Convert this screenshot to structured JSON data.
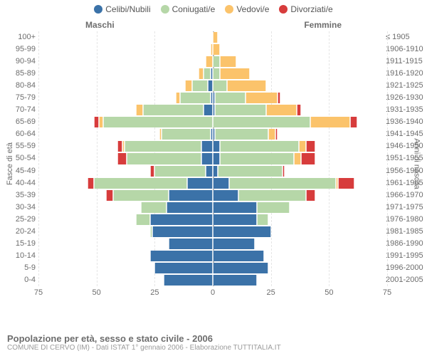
{
  "legend": [
    {
      "label": "Celibi/Nubili",
      "color": "#3b72a8"
    },
    {
      "label": "Coniugati/e",
      "color": "#b6d7a8"
    },
    {
      "label": "Vedovi/e",
      "color": "#fbc36b"
    },
    {
      "label": "Divorziati/e",
      "color": "#d73c3c"
    }
  ],
  "gender_labels": {
    "m": "Maschi",
    "f": "Femmine"
  },
  "axis_titles": {
    "left": "Fasce di età",
    "right": "Anni di nascita"
  },
  "footer": {
    "title": "Popolazione per età, sesso e stato civile - 2006",
    "subtitle": "COMUNE DI CERVO (IM) - Dati ISTAT 1° gennaio 2006 - Elaborazione TUTTITALIA.IT"
  },
  "chart": {
    "background_color": "#ffffff",
    "grid_color": "#e5e5e5",
    "centerline_color": "#bcbcbc",
    "text_color": "#6d6d6d",
    "xmax": 75,
    "xticks": [
      75,
      50,
      25,
      0,
      25,
      50,
      75
    ],
    "age_labels": [
      "100+",
      "95-99",
      "90-94",
      "85-89",
      "80-84",
      "75-79",
      "70-74",
      "65-69",
      "60-64",
      "55-59",
      "50-54",
      "45-49",
      "40-44",
      "35-39",
      "30-34",
      "25-29",
      "20-24",
      "15-19",
      "10-14",
      "5-9",
      "0-4"
    ],
    "birth_labels": [
      "≤ 1905",
      "1906-1910",
      "1911-1915",
      "1916-1920",
      "1921-1925",
      "1926-1930",
      "1931-1935",
      "1936-1940",
      "1941-1945",
      "1946-1950",
      "1951-1955",
      "1956-1960",
      "1961-1965",
      "1966-1970",
      "1971-1975",
      "1976-1980",
      "1981-1985",
      "1986-1990",
      "1991-1995",
      "1996-2000",
      "2001-2005"
    ],
    "rows": [
      {
        "m": [
          0,
          0,
          0,
          0
        ],
        "f": [
          0,
          0,
          2,
          0
        ]
      },
      {
        "m": [
          0,
          0,
          1,
          0
        ],
        "f": [
          0,
          0,
          3,
          0
        ]
      },
      {
        "m": [
          0,
          0,
          3,
          0
        ],
        "f": [
          0,
          3,
          7,
          0
        ]
      },
      {
        "m": [
          1,
          3,
          2,
          0
        ],
        "f": [
          0,
          3,
          13,
          0
        ]
      },
      {
        "m": [
          2,
          7,
          3,
          0
        ],
        "f": [
          0,
          6,
          17,
          0
        ]
      },
      {
        "m": [
          1,
          13,
          2,
          0
        ],
        "f": [
          1,
          13,
          14,
          1
        ]
      },
      {
        "m": [
          4,
          26,
          3,
          0
        ],
        "f": [
          1,
          22,
          13,
          2
        ]
      },
      {
        "m": [
          0,
          47,
          2,
          2
        ],
        "f": [
          0,
          42,
          17,
          3
        ]
      },
      {
        "m": [
          1,
          21,
          1,
          0
        ],
        "f": [
          1,
          23,
          3,
          1
        ]
      },
      {
        "m": [
          5,
          33,
          1,
          2
        ],
        "f": [
          3,
          34,
          3,
          4
        ]
      },
      {
        "m": [
          5,
          32,
          0,
          4
        ],
        "f": [
          3,
          32,
          3,
          6
        ]
      },
      {
        "m": [
          3,
          22,
          0,
          2
        ],
        "f": [
          2,
          28,
          0,
          1
        ]
      },
      {
        "m": [
          11,
          40,
          0,
          3
        ],
        "f": [
          7,
          46,
          1,
          7
        ]
      },
      {
        "m": [
          19,
          24,
          0,
          3
        ],
        "f": [
          11,
          29,
          0,
          4
        ]
      },
      {
        "m": [
          20,
          11,
          0,
          0
        ],
        "f": [
          19,
          14,
          0,
          0
        ]
      },
      {
        "m": [
          27,
          6,
          0,
          0
        ],
        "f": [
          19,
          5,
          0,
          0
        ]
      },
      {
        "m": [
          26,
          1,
          0,
          0
        ],
        "f": [
          25,
          0,
          0,
          0
        ]
      },
      {
        "m": [
          19,
          0,
          0,
          0
        ],
        "f": [
          18,
          0,
          0,
          0
        ]
      },
      {
        "m": [
          27,
          0,
          0,
          0
        ],
        "f": [
          22,
          0,
          0,
          0
        ]
      },
      {
        "m": [
          25,
          0,
          0,
          0
        ],
        "f": [
          24,
          0,
          0,
          0
        ]
      },
      {
        "m": [
          21,
          0,
          0,
          0
        ],
        "f": [
          19,
          0,
          0,
          0
        ]
      }
    ]
  }
}
